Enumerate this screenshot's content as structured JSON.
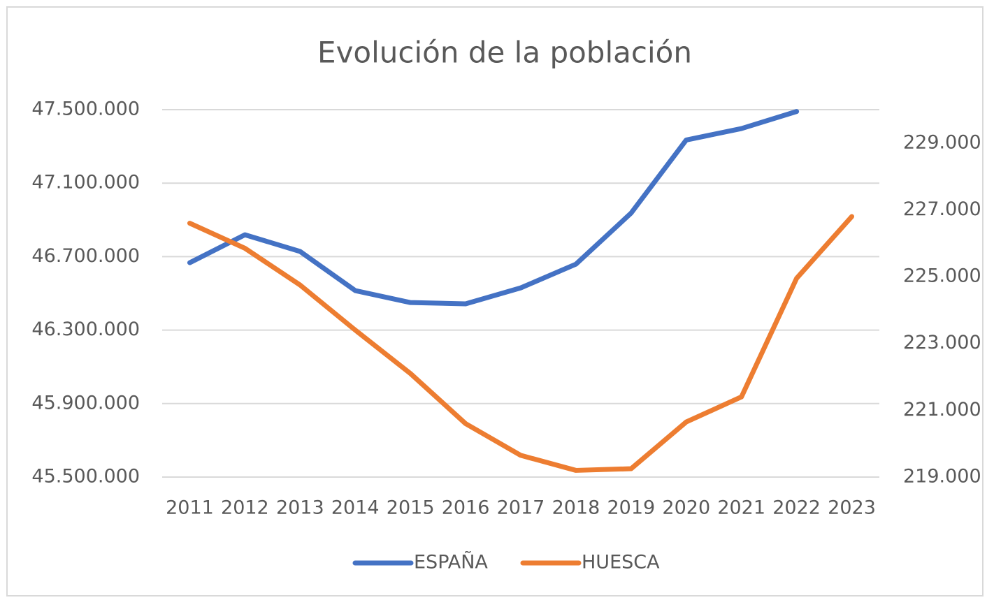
{
  "chart_data": {
    "type": "line",
    "title": "Evolución de la población",
    "categories": [
      "2011",
      "2012",
      "2013",
      "2014",
      "2015",
      "2016",
      "2017",
      "2018",
      "2019",
      "2020",
      "2021",
      "2022",
      "2023"
    ],
    "series": [
      {
        "name": "ESPAÑA",
        "color": "#4472c4",
        "axis": "y",
        "values": [
          46667000,
          46819000,
          46728000,
          46515000,
          46450000,
          46443000,
          46530000,
          46659000,
          46937000,
          47335000,
          47397000,
          47490000,
          null
        ]
      },
      {
        "name": "HUESCA",
        "color": "#ed7d31",
        "axis": "y2",
        "values": [
          226600,
          225850,
          224750,
          223400,
          222100,
          220600,
          219650,
          219200,
          219250,
          220650,
          221400,
          224950,
          226800
        ]
      }
    ],
    "ylim": [
      45500000,
      47500000
    ],
    "yticks": [
      {
        "value": 45500000,
        "label": "45.500.000"
      },
      {
        "value": 45900000,
        "label": "45.900.000"
      },
      {
        "value": 46300000,
        "label": "46.300.000"
      },
      {
        "value": 46700000,
        "label": "46.700.000"
      },
      {
        "value": 47100000,
        "label": "47.100.000"
      },
      {
        "value": 47500000,
        "label": "47.500.000"
      }
    ],
    "y2lim": [
      219000,
      230000
    ],
    "y2ticks": [
      {
        "value": 219000,
        "label": "219.000"
      },
      {
        "value": 221000,
        "label": "221.000"
      },
      {
        "value": 223000,
        "label": "223.000"
      },
      {
        "value": 225000,
        "label": "225.000"
      },
      {
        "value": 227000,
        "label": "227.000"
      },
      {
        "value": 229000,
        "label": "229.000"
      }
    ],
    "grid": true,
    "legend": "bottom"
  }
}
